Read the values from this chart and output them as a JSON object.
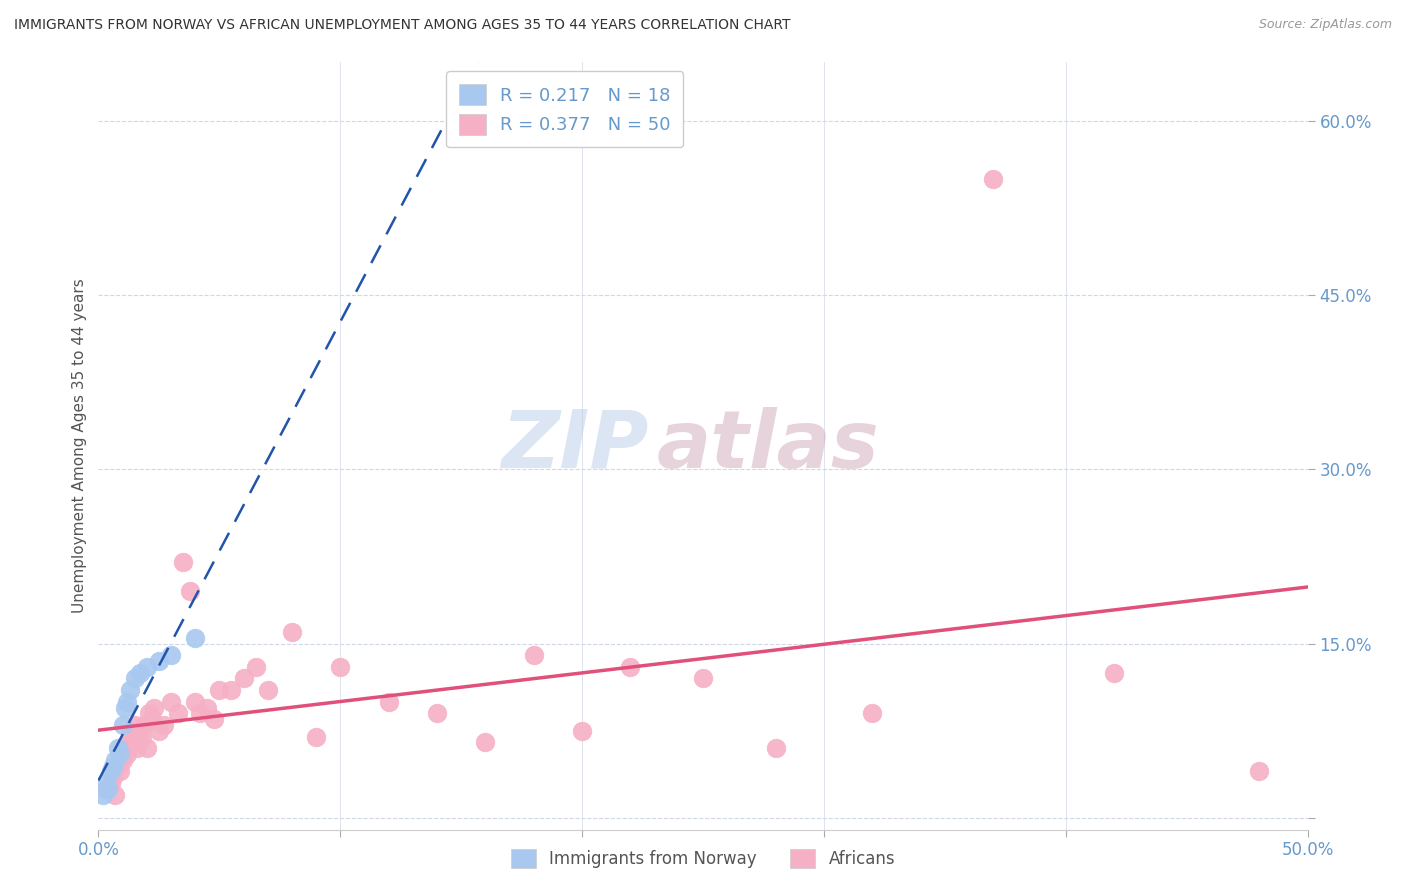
{
  "title": "IMMIGRANTS FROM NORWAY VS AFRICAN UNEMPLOYMENT AMONG AGES 35 TO 44 YEARS CORRELATION CHART",
  "source": "Source: ZipAtlas.com",
  "ylabel": "Unemployment Among Ages 35 to 44 years",
  "xlim": [
    0.0,
    0.5
  ],
  "ylim": [
    -0.01,
    0.65
  ],
  "norway_x": [
    0.002,
    0.003,
    0.004,
    0.005,
    0.006,
    0.007,
    0.008,
    0.009,
    0.01,
    0.011,
    0.012,
    0.013,
    0.015,
    0.017,
    0.02,
    0.025,
    0.03,
    0.04
  ],
  "norway_y": [
    0.02,
    0.03,
    0.025,
    0.04,
    0.045,
    0.05,
    0.06,
    0.055,
    0.08,
    0.095,
    0.1,
    0.11,
    0.12,
    0.125,
    0.13,
    0.135,
    0.14,
    0.155
  ],
  "african_x": [
    0.003,
    0.005,
    0.006,
    0.007,
    0.008,
    0.009,
    0.01,
    0.011,
    0.012,
    0.013,
    0.014,
    0.015,
    0.016,
    0.017,
    0.018,
    0.019,
    0.02,
    0.021,
    0.022,
    0.023,
    0.025,
    0.027,
    0.03,
    0.033,
    0.035,
    0.038,
    0.04,
    0.042,
    0.045,
    0.048,
    0.05,
    0.055,
    0.06,
    0.065,
    0.07,
    0.08,
    0.09,
    0.1,
    0.12,
    0.14,
    0.16,
    0.18,
    0.2,
    0.22,
    0.25,
    0.28,
    0.32,
    0.37,
    0.42,
    0.48
  ],
  "african_y": [
    0.025,
    0.03,
    0.035,
    0.02,
    0.045,
    0.04,
    0.05,
    0.06,
    0.055,
    0.07,
    0.065,
    0.08,
    0.06,
    0.075,
    0.07,
    0.08,
    0.06,
    0.09,
    0.085,
    0.095,
    0.075,
    0.08,
    0.1,
    0.09,
    0.22,
    0.195,
    0.1,
    0.09,
    0.095,
    0.085,
    0.11,
    0.11,
    0.12,
    0.13,
    0.11,
    0.16,
    0.07,
    0.13,
    0.1,
    0.09,
    0.065,
    0.14,
    0.075,
    0.13,
    0.12,
    0.06,
    0.09,
    0.55,
    0.125,
    0.04
  ],
  "norway_R": 0.217,
  "norway_N": 18,
  "african_R": 0.377,
  "african_N": 50,
  "norway_color": "#a8c8f0",
  "african_color": "#f5b0c5",
  "norway_line_color": "#2255aa",
  "african_line_color": "#e0507a",
  "watermark_zip": "ZIP",
  "watermark_atlas": "atlas",
  "background_color": "#ffffff",
  "grid_color": "#d0d8e8",
  "axis_color": "#6699cc",
  "yticks": [
    0.0,
    0.15,
    0.3,
    0.45,
    0.6
  ],
  "ytick_labels": [
    "",
    "15.0%",
    "30.0%",
    "45.0%",
    "60.0%"
  ],
  "xtick_labels_left": "0.0%",
  "xtick_labels_right": "50.0%"
}
